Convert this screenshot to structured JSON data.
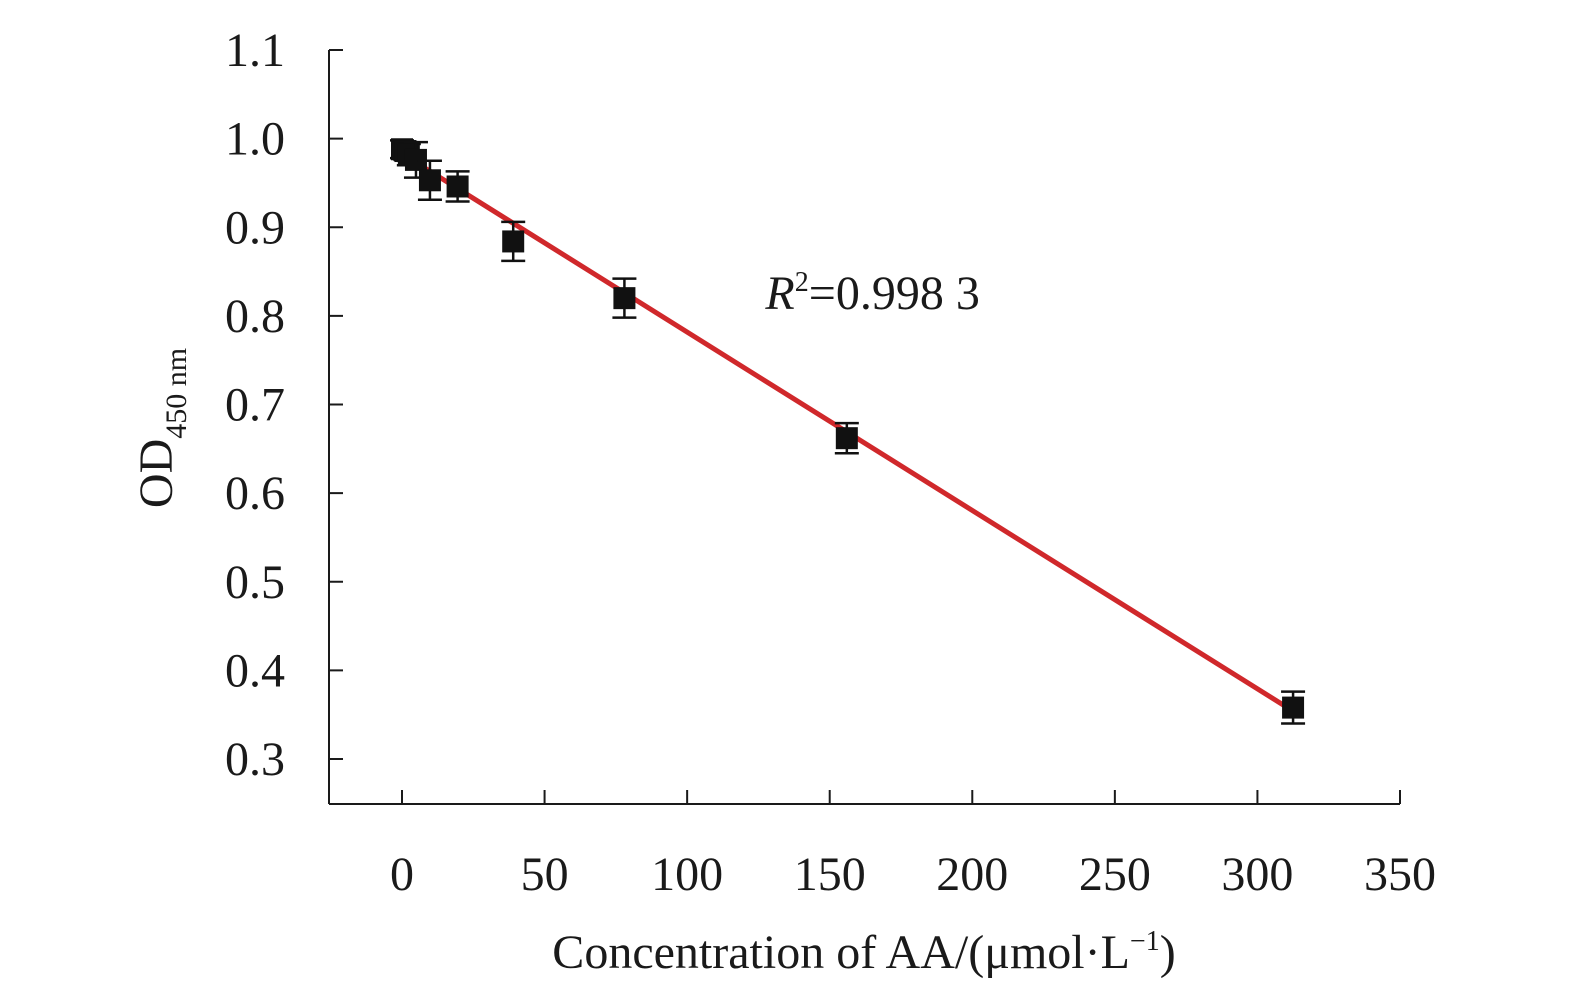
{
  "chart_data": {
    "type": "scatter",
    "x_axis": {
      "label_main": "Concentration of AA/(μmol·L",
      "label_sup": "−1",
      "label_close": ")",
      "range": [
        -25,
        350
      ],
      "ticks": [
        0,
        50,
        100,
        150,
        200,
        250,
        300,
        350
      ]
    },
    "y_axis": {
      "label_main": "OD",
      "label_sub": "450 nm",
      "range": [
        0.25,
        1.1
      ],
      "ticks": [
        0.3,
        0.4,
        0.5,
        0.6,
        0.7,
        0.8,
        0.9,
        1.0,
        1.1
      ],
      "tick_labels": [
        "0.3",
        "0.4",
        "0.5",
        "0.6",
        "0.7",
        "0.8",
        "0.9",
        "1.0",
        "1.1"
      ]
    },
    "grid": false,
    "series": [
      {
        "type": "scatter",
        "marker": "square",
        "color": "#111111",
        "points": [
          {
            "x": 0,
            "y": 0.988,
            "err": 0.01
          },
          {
            "x": 1.2,
            "y": 0.986,
            "err": 0.01
          },
          {
            "x": 2.4,
            "y": 0.982,
            "err": 0.012
          },
          {
            "x": 4.9,
            "y": 0.976,
            "err": 0.02
          },
          {
            "x": 9.8,
            "y": 0.953,
            "err": 0.022
          },
          {
            "x": 19.5,
            "y": 0.946,
            "err": 0.017
          },
          {
            "x": 39,
            "y": 0.884,
            "err": 0.022
          },
          {
            "x": 78,
            "y": 0.82,
            "err": 0.022
          },
          {
            "x": 156,
            "y": 0.662,
            "err": 0.017
          },
          {
            "x": 312.5,
            "y": 0.358,
            "err": 0.018
          }
        ]
      },
      {
        "type": "line",
        "role": "linear fit",
        "color": "#d0282b",
        "points": [
          {
            "x": 0,
            "y": 0.983
          },
          {
            "x": 312.5,
            "y": 0.354
          }
        ]
      }
    ],
    "annotation": {
      "var": "R",
      "sup": "2",
      "text": "=0.998 3",
      "x": 125,
      "y": 0.81
    }
  }
}
